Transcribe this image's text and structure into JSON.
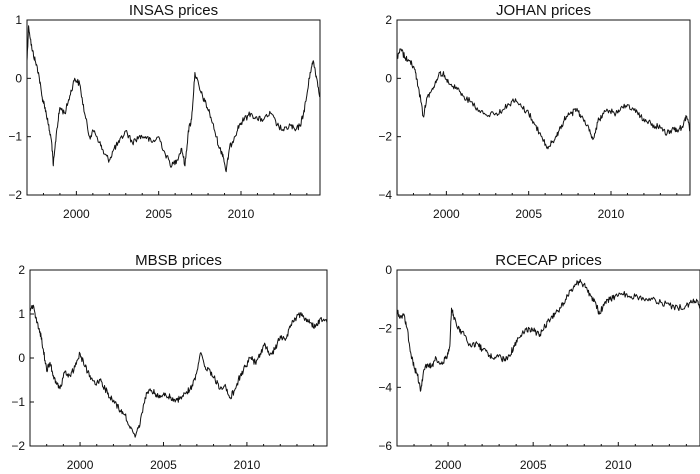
{
  "chart_data": [
    {
      "type": "line",
      "title": "INSAS prices",
      "xlabel": "",
      "ylabel": "",
      "xlim": [
        1997.0,
        2014.8
      ],
      "ylim": [
        -2,
        1
      ],
      "x_ticks": [
        2000,
        2005,
        2010
      ],
      "x_tick_labels": [
        "2000",
        "2005",
        "2010"
      ],
      "y_ticks": [
        -2,
        -1,
        0,
        1
      ],
      "y_tick_labels": [
        "−2",
        "−1",
        "0",
        "1"
      ],
      "grid": false,
      "series": [
        {
          "x": [
            1997.0,
            1997.1,
            1997.3,
            1997.5,
            1997.7,
            1997.9,
            1998.1,
            1998.3,
            1998.5,
            1998.6,
            1998.8,
            1999.0,
            1999.3,
            1999.6,
            1999.9,
            2000.2,
            2000.5,
            2000.8,
            2001.1,
            2001.4,
            2001.7,
            2002.0,
            2002.3,
            2002.6,
            2003.0,
            2003.4,
            2003.8,
            2004.2,
            2004.6,
            2005.0,
            2005.4,
            2005.8,
            2006.1,
            2006.4,
            2006.6,
            2006.8,
            2007.0,
            2007.2,
            2007.5,
            2007.8,
            2008.1,
            2008.4,
            2008.7,
            2008.9,
            2009.1,
            2009.3,
            2009.6,
            2009.9,
            2010.2,
            2010.6,
            2011.0,
            2011.4,
            2011.8,
            2012.2,
            2012.6,
            2013.0,
            2013.3,
            2013.6,
            2013.8,
            2014.0,
            2014.2,
            2014.4,
            2014.6,
            2014.8
          ],
          "y": [
            0.3,
            0.9,
            0.5,
            0.3,
            0.1,
            -0.3,
            -0.5,
            -0.8,
            -1.1,
            -1.5,
            -0.9,
            -0.5,
            -0.6,
            -0.3,
            0.0,
            -0.1,
            -0.6,
            -1.0,
            -0.9,
            -1.1,
            -1.3,
            -1.4,
            -1.2,
            -1.1,
            -0.9,
            -1.1,
            -1.0,
            -1.0,
            -1.1,
            -1.0,
            -1.3,
            -1.5,
            -1.4,
            -1.2,
            -1.5,
            -0.9,
            -0.7,
            0.1,
            -0.2,
            -0.4,
            -0.6,
            -0.9,
            -1.2,
            -1.3,
            -1.6,
            -1.2,
            -1.0,
            -0.8,
            -0.7,
            -0.6,
            -0.7,
            -0.7,
            -0.6,
            -0.8,
            -0.9,
            -0.8,
            -0.9,
            -0.8,
            -0.6,
            -0.3,
            0.1,
            0.3,
            0.0,
            -0.3
          ]
        }
      ]
    },
    {
      "type": "line",
      "title": "JOHAN prices",
      "xlabel": "",
      "ylabel": "",
      "xlim": [
        1997.0,
        2014.8
      ],
      "ylim": [
        -4,
        2
      ],
      "x_ticks": [
        2000,
        2005,
        2010
      ],
      "x_tick_labels": [
        "2000",
        "2005",
        "2010"
      ],
      "y_ticks": [
        -4,
        -2,
        0,
        2
      ],
      "y_tick_labels": [
        "−4",
        "−2",
        "0",
        "2"
      ],
      "grid": false,
      "series": [
        {
          "x": [
            1997.0,
            1997.2,
            1997.5,
            1997.8,
            1998.1,
            1998.3,
            1998.6,
            1998.8,
            1999.0,
            1999.3,
            1999.6,
            1999.9,
            2000.2,
            2000.6,
            2001.0,
            2001.5,
            2002.0,
            2002.5,
            2003.0,
            2003.4,
            2003.8,
            2004.2,
            2004.6,
            2005.0,
            2005.4,
            2005.8,
            2006.1,
            2006.4,
            2006.7,
            2007.0,
            2007.3,
            2007.6,
            2007.9,
            2008.2,
            2008.6,
            2008.9,
            2009.2,
            2009.5,
            2009.9,
            2010.3,
            2010.6,
            2011.0,
            2011.4,
            2011.8,
            2012.2,
            2012.6,
            2013.0,
            2013.4,
            2013.8,
            2014.1,
            2014.4,
            2014.6,
            2014.8
          ],
          "y": [
            0.7,
            1.0,
            0.7,
            0.6,
            0.3,
            -0.3,
            -1.3,
            -0.7,
            -0.5,
            -0.2,
            0.2,
            0.1,
            -0.2,
            -0.3,
            -0.6,
            -0.8,
            -1.1,
            -1.3,
            -1.2,
            -1.1,
            -0.9,
            -0.7,
            -1.0,
            -1.2,
            -1.6,
            -2.0,
            -2.4,
            -2.2,
            -2.0,
            -1.6,
            -1.3,
            -1.2,
            -1.1,
            -1.3,
            -1.6,
            -2.1,
            -1.5,
            -1.2,
            -1.1,
            -1.2,
            -1.0,
            -0.9,
            -1.1,
            -1.3,
            -1.5,
            -1.6,
            -1.7,
            -1.9,
            -1.7,
            -1.8,
            -1.6,
            -1.3,
            -1.8
          ]
        }
      ]
    },
    {
      "type": "line",
      "title": "MBSB prices",
      "xlabel": "",
      "ylabel": "",
      "xlim": [
        1997.0,
        2014.8
      ],
      "ylim": [
        -2,
        2
      ],
      "x_ticks": [
        2000,
        2005,
        2010
      ],
      "x_tick_labels": [
        "2000",
        "2005",
        "2010"
      ],
      "y_ticks": [
        -2,
        -1,
        0,
        1,
        2
      ],
      "y_tick_labels": [
        "−2",
        "−1",
        "0",
        "1",
        "2"
      ],
      "grid": false,
      "series": [
        {
          "x": [
            1997.0,
            1997.2,
            1997.4,
            1997.6,
            1997.8,
            1998.0,
            1998.2,
            1998.4,
            1998.6,
            1998.8,
            1999.1,
            1999.4,
            1999.7,
            2000.0,
            2000.3,
            2000.6,
            2000.9,
            2001.2,
            2001.5,
            2001.8,
            2002.1,
            2002.4,
            2002.7,
            2003.0,
            2003.3,
            2003.6,
            2003.9,
            2004.2,
            2004.5,
            2004.8,
            2005.1,
            2005.4,
            2005.7,
            2006.0,
            2006.3,
            2006.6,
            2006.9,
            2007.2,
            2007.5,
            2007.8,
            2008.1,
            2008.4,
            2008.7,
            2009.0,
            2009.3,
            2009.6,
            2009.9,
            2010.2,
            2010.5,
            2010.8,
            2011.1,
            2011.4,
            2011.7,
            2012.0,
            2012.3,
            2012.6,
            2012.9,
            2013.2,
            2013.5,
            2013.8,
            2014.1,
            2014.4,
            2014.8
          ],
          "y": [
            1.1,
            1.2,
            0.8,
            0.6,
            0.2,
            -0.3,
            -0.1,
            -0.4,
            -0.6,
            -0.7,
            -0.3,
            -0.4,
            -0.2,
            0.1,
            -0.2,
            -0.4,
            -0.6,
            -0.5,
            -0.7,
            -0.9,
            -1.0,
            -1.2,
            -1.3,
            -1.6,
            -1.8,
            -1.5,
            -0.9,
            -0.7,
            -0.8,
            -0.9,
            -0.8,
            -0.9,
            -1.0,
            -0.9,
            -0.8,
            -0.7,
            -0.5,
            0.1,
            -0.2,
            -0.3,
            -0.5,
            -0.7,
            -0.6,
            -0.9,
            -0.7,
            -0.4,
            -0.2,
            0.0,
            -0.1,
            0.1,
            0.3,
            0.1,
            0.2,
            0.5,
            0.4,
            0.7,
            0.9,
            1.0,
            0.9,
            0.8,
            0.7,
            0.9,
            0.8
          ]
        }
      ]
    },
    {
      "type": "line",
      "title": "RCECAP prices",
      "xlabel": "",
      "ylabel": "",
      "xlim": [
        1997.0,
        2014.8
      ],
      "ylim": [
        -6,
        0
      ],
      "x_ticks": [
        2000,
        2005,
        2010
      ],
      "x_tick_labels": [
        "2000",
        "2005",
        "2010"
      ],
      "y_ticks": [
        -6,
        -4,
        -2,
        0
      ],
      "y_tick_labels": [
        "−6",
        "−4",
        "−2",
        "0"
      ],
      "grid": false,
      "series": [
        {
          "x": [
            1997.0,
            1997.2,
            1997.4,
            1997.6,
            1997.8,
            1998.0,
            1998.2,
            1998.4,
            1998.6,
            1998.8,
            1999.0,
            1999.3,
            1999.6,
            1999.9,
            2000.1,
            2000.2,
            2000.3,
            2000.5,
            2000.8,
            2001.1,
            2001.4,
            2001.7,
            2002.0,
            2002.3,
            2002.6,
            2003.0,
            2003.3,
            2003.6,
            2003.9,
            2004.2,
            2004.5,
            2004.8,
            2005.1,
            2005.4,
            2005.7,
            2006.0,
            2006.3,
            2006.6,
            2006.9,
            2007.2,
            2007.5,
            2007.8,
            2008.1,
            2008.4,
            2008.7,
            2008.9,
            2009.2,
            2009.5,
            2009.8,
            2010.2,
            2010.6,
            2011.0,
            2011.5,
            2012.0,
            2012.5,
            2013.0,
            2013.5,
            2014.0,
            2014.3,
            2014.6,
            2014.8
          ],
          "y": [
            -1.4,
            -1.6,
            -1.5,
            -2.0,
            -2.8,
            -3.3,
            -3.6,
            -4.1,
            -3.4,
            -3.2,
            -3.3,
            -3.0,
            -3.2,
            -3.0,
            -2.6,
            -1.3,
            -1.5,
            -1.9,
            -2.1,
            -2.4,
            -2.6,
            -2.5,
            -2.7,
            -2.8,
            -3.0,
            -2.9,
            -3.1,
            -2.9,
            -2.6,
            -2.3,
            -2.1,
            -2.0,
            -2.1,
            -2.2,
            -1.9,
            -1.7,
            -1.5,
            -1.3,
            -1.0,
            -0.7,
            -0.5,
            -0.4,
            -0.6,
            -0.9,
            -1.2,
            -1.5,
            -1.1,
            -1.0,
            -0.9,
            -0.8,
            -0.9,
            -0.9,
            -1.0,
            -1.0,
            -1.1,
            -1.2,
            -1.3,
            -1.2,
            -1.1,
            -1.0,
            -1.3
          ]
        }
      ]
    }
  ]
}
